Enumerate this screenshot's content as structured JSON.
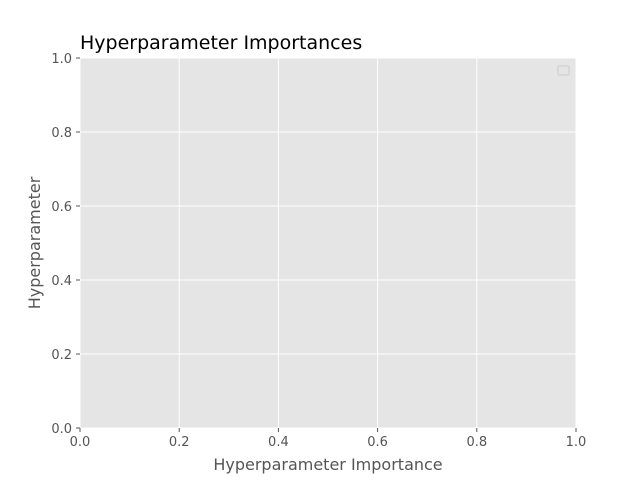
{
  "chart_data": {
    "type": "bar",
    "title": "Hyperparameter Importances",
    "xlabel": "Hyperparameter Importance",
    "ylabel": "Hyperparameter",
    "xlim": [
      0.0,
      1.0
    ],
    "ylim": [
      0.0,
      1.0
    ],
    "x_ticks": [
      "0.0",
      "0.2",
      "0.4",
      "0.6",
      "0.8",
      "1.0"
    ],
    "y_ticks": [
      "0.0",
      "0.2",
      "0.4",
      "0.6",
      "0.8",
      "1.0"
    ],
    "categories": [],
    "series": [],
    "grid": true,
    "legend": {
      "placement": "top-right",
      "entries": []
    },
    "colors": {
      "plot_background": "#e5e5e5",
      "grid": "#ffffff",
      "text": "#555555",
      "title": "#000000"
    }
  }
}
